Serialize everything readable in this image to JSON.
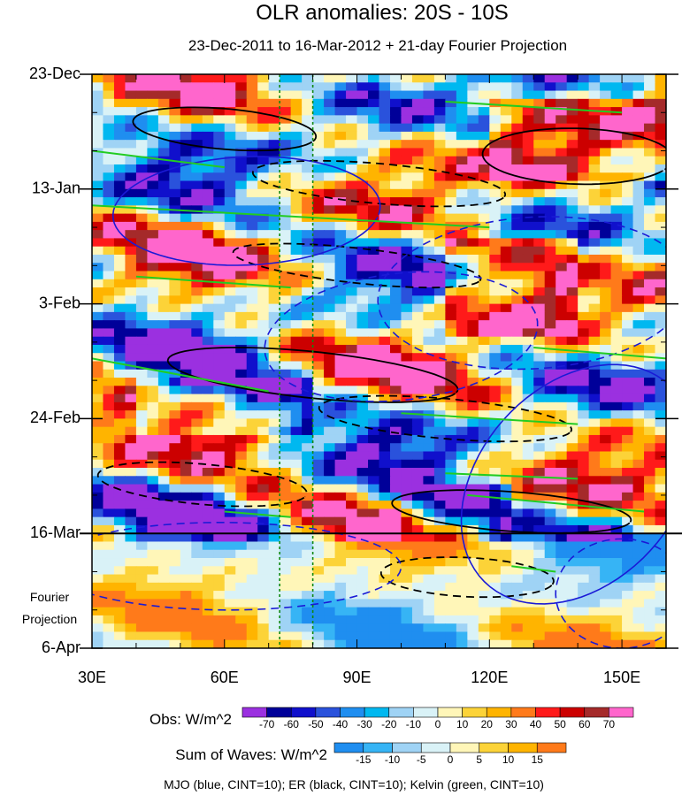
{
  "chart_data": {
    "type": "heatmap",
    "title": "OLR anomalies: 20S - 10S",
    "subtitle": "23-Dec-2011 to 16-Mar-2012 + 21-day Fourier Projection",
    "x_axis": {
      "range": [
        30,
        160
      ],
      "ticks": [
        30,
        60,
        90,
        120,
        150
      ],
      "tick_labels": [
        "30E",
        "60E",
        "90E",
        "120E",
        "150E"
      ]
    },
    "y_axis": {
      "range_days": [
        0,
        105
      ],
      "ticks_days": [
        0,
        21,
        42,
        63,
        84,
        105
      ],
      "tick_labels": [
        "23-Dec",
        "13-Jan",
        "3-Feb",
        "24-Feb",
        "16-Mar",
        "6-Apr"
      ],
      "projection_label": [
        "Fourier",
        "Projection"
      ],
      "projection_start_day": 84
    },
    "vertical_reference_lines_lon": [
      72.5,
      80
    ],
    "obs_colorbar": {
      "label": "Obs: W/m^2",
      "levels": [
        -70,
        -60,
        -50,
        -40,
        -30,
        -20,
        -10,
        0,
        10,
        20,
        30,
        40,
        50,
        60,
        70
      ],
      "level_labels": [
        "-70",
        "-60",
        "-50",
        "-40",
        "-30",
        "-20",
        "-10",
        "0",
        "10",
        "20",
        "30",
        "40",
        "50",
        "60",
        "70"
      ],
      "colors": [
        "#9b30e0",
        "#000099",
        "#1010cc",
        "#2a52dc",
        "#1f8ef0",
        "#00b8f0",
        "#9fd3f5",
        "#d9f2f7",
        "#fff6b8",
        "#fcd338",
        "#ffb400",
        "#ff7a1a",
        "#ff1a1a",
        "#cc0000",
        "#a52a2a",
        "#ff66cc"
      ]
    },
    "waves_colorbar": {
      "label": "Sum of Waves: W/m^2",
      "levels": [
        -15,
        -10,
        -5,
        0,
        5,
        10,
        15
      ],
      "level_labels": [
        "-15",
        "-10",
        "-5",
        "0",
        "5",
        "10",
        "15"
      ],
      "colors": [
        "#1f8ef0",
        "#36b4f5",
        "#9fd3f5",
        "#d9f2f7",
        "#fff6b8",
        "#fcd338",
        "#ffb400",
        "#ff7a1a"
      ]
    },
    "caption": "MJO (blue, CINT=10); ER (black, CINT=10); Kelvin (green, CINT=10)",
    "series": [
      {
        "name": "MJO",
        "color": "#1a1ad6",
        "cint": 10
      },
      {
        "name": "ER",
        "color": "#000000",
        "cint": 10
      },
      {
        "name": "Kelvin",
        "color": "#22cc22",
        "cint": 10
      }
    ]
  }
}
